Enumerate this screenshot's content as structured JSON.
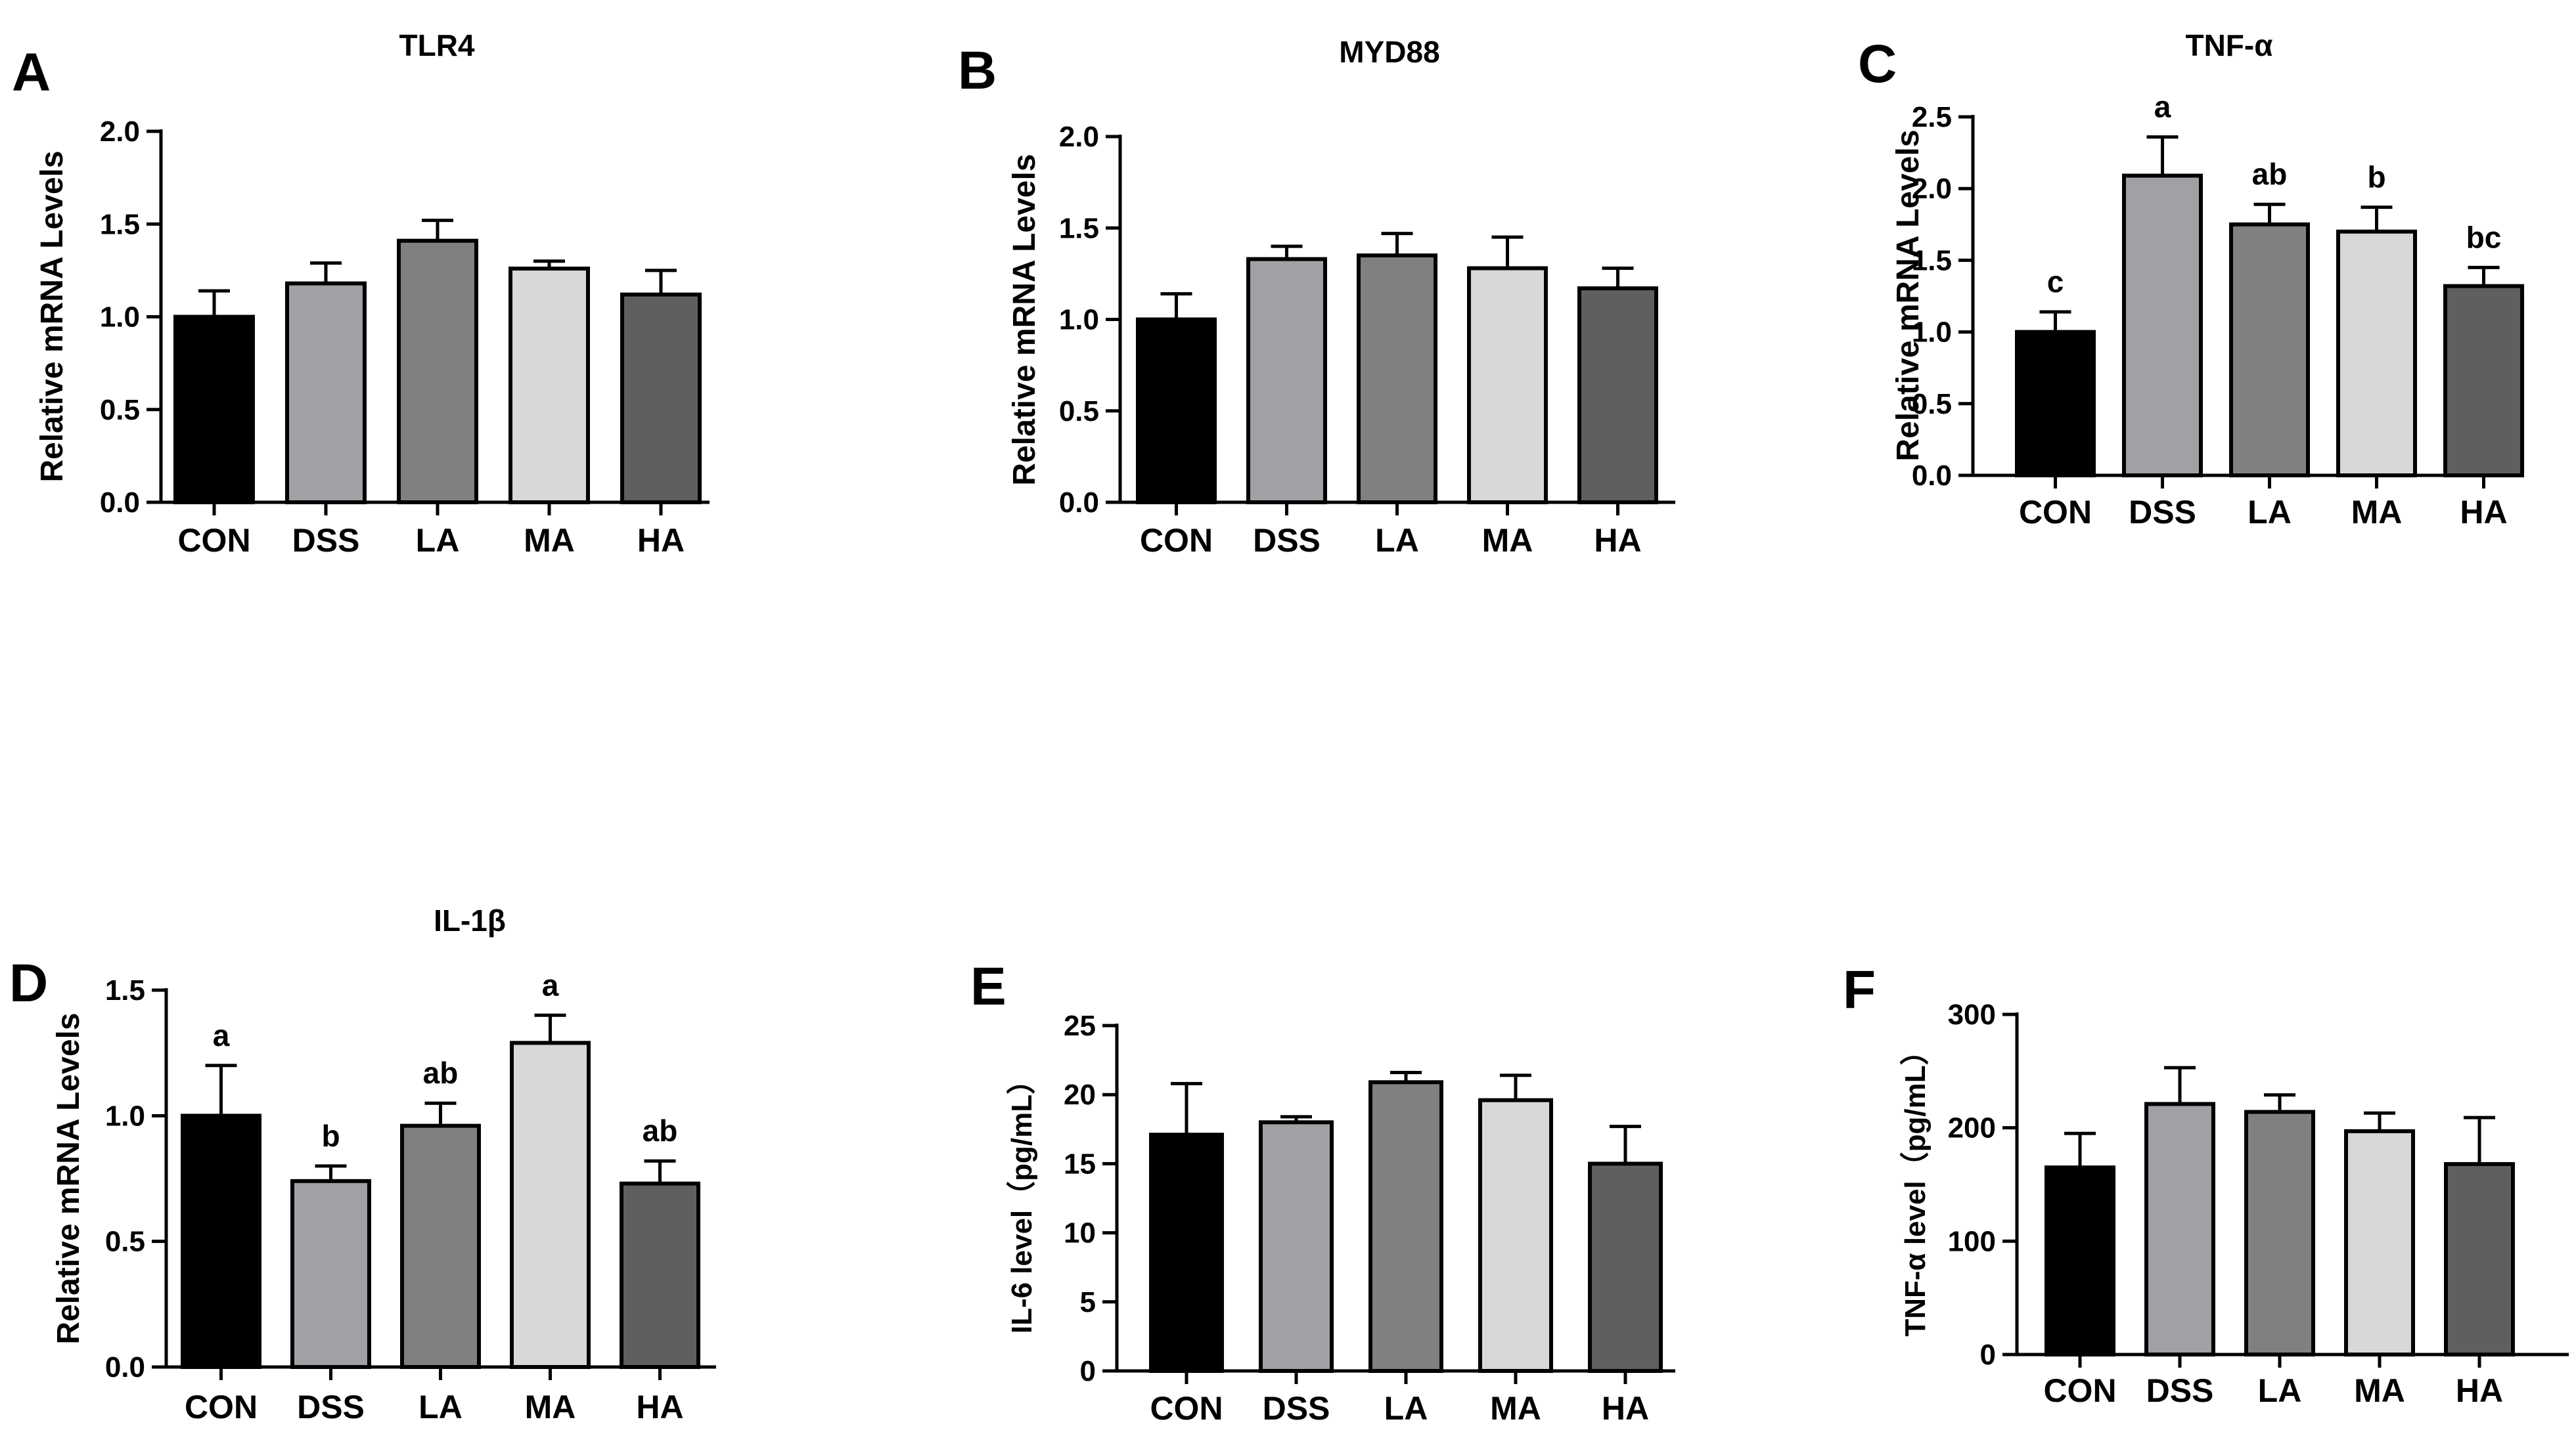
{
  "chart_data": [
    {
      "panel": "A",
      "type": "bar",
      "title": "TLR4",
      "xlabel": "",
      "ylabel": "Relative mRNA Levels",
      "categories": [
        "CON",
        "DSS",
        "LA",
        "MA",
        "HA"
      ],
      "values": [
        1.0,
        1.18,
        1.41,
        1.26,
        1.12
      ],
      "errors": [
        0.14,
        0.11,
        0.11,
        0.04,
        0.13
      ],
      "ylim": [
        0,
        2.0
      ],
      "yticks": [
        "0.0",
        "0.5",
        "1.0",
        "1.5",
        "2.0"
      ],
      "yticks_values": [
        0,
        0.5,
        1.0,
        1.5,
        2.0
      ],
      "significance": [
        "",
        "",
        "",
        "",
        ""
      ]
    },
    {
      "panel": "B",
      "type": "bar",
      "title": "MYD88",
      "xlabel": "",
      "ylabel": "Relative mRNA Levels",
      "categories": [
        "CON",
        "DSS",
        "LA",
        "MA",
        "HA"
      ],
      "values": [
        1.0,
        1.33,
        1.35,
        1.28,
        1.17
      ],
      "errors": [
        0.14,
        0.07,
        0.12,
        0.17,
        0.11
      ],
      "ylim": [
        0,
        2.0
      ],
      "yticks": [
        "0.0",
        "0.5",
        "1.0",
        "1.5",
        "2.0"
      ],
      "yticks_values": [
        0,
        0.5,
        1.0,
        1.5,
        2.0
      ],
      "significance": [
        "",
        "",
        "",
        "",
        ""
      ]
    },
    {
      "panel": "C",
      "type": "bar",
      "title": "TNF-α",
      "xlabel": "",
      "ylabel": "Relative mRNA Levels",
      "categories": [
        "CON",
        "DSS",
        "LA",
        "MA",
        "HA"
      ],
      "values": [
        1.0,
        2.09,
        1.75,
        1.7,
        1.32
      ],
      "errors": [
        0.14,
        0.27,
        0.14,
        0.17,
        0.13
      ],
      "ylim": [
        0,
        2.5
      ],
      "yticks": [
        "0.0",
        "0.5",
        "1.0",
        "1.5",
        "2.0",
        "2.5"
      ],
      "yticks_values": [
        0,
        0.5,
        1.0,
        1.5,
        2.0,
        2.5
      ],
      "significance": [
        "c",
        "a",
        "ab",
        "b",
        "bc"
      ]
    },
    {
      "panel": "D",
      "type": "bar",
      "title": "IL-1β",
      "xlabel": "",
      "ylabel": "Relative mRNA Levels",
      "categories": [
        "CON",
        "DSS",
        "LA",
        "MA",
        "HA"
      ],
      "values": [
        1.0,
        0.74,
        0.96,
        1.29,
        0.73
      ],
      "errors": [
        0.2,
        0.06,
        0.09,
        0.11,
        0.09
      ],
      "ylim": [
        0,
        1.5
      ],
      "yticks": [
        "0.0",
        "0.5",
        "1.0",
        "1.5"
      ],
      "yticks_values": [
        0,
        0.5,
        1.0,
        1.5
      ],
      "significance": [
        "a",
        "b",
        "ab",
        "a",
        "ab"
      ]
    },
    {
      "panel": "E",
      "type": "bar",
      "title": "",
      "xlabel": "",
      "ylabel": "IL-6 level（pg/mL）",
      "categories": [
        "CON",
        "DSS",
        "LA",
        "MA",
        "HA"
      ],
      "values": [
        17.1,
        18.0,
        20.9,
        19.6,
        15.0
      ],
      "errors": [
        3.7,
        0.4,
        0.7,
        1.8,
        2.7
      ],
      "ylim": [
        0,
        25
      ],
      "yticks": [
        "0",
        "5",
        "10",
        "15",
        "20",
        "25"
      ],
      "yticks_values": [
        0,
        5,
        10,
        15,
        20,
        25
      ],
      "significance": [
        "",
        "",
        "",
        "",
        ""
      ]
    },
    {
      "panel": "F",
      "type": "bar",
      "title": "",
      "xlabel": "",
      "ylabel": "TNF-α level（pg/mL）",
      "categories": [
        "CON",
        "DSS",
        "LA",
        "MA",
        "HA"
      ],
      "values": [
        165,
        221,
        214,
        197,
        168
      ],
      "errors": [
        30,
        32,
        15,
        16,
        41
      ],
      "ylim": [
        0,
        300
      ],
      "yticks": [
        "0",
        "100",
        "200",
        "300"
      ],
      "yticks_values": [
        0,
        100,
        200,
        300
      ],
      "significance": [
        "",
        "",
        "",
        "",
        ""
      ]
    }
  ],
  "colors": {
    "bar_fills": [
      "#000000",
      "#a0a0a5",
      "#808080",
      "#d8d8d8",
      "#5f5f5f"
    ],
    "stroke": "#000000",
    "background": "#ffffff"
  }
}
